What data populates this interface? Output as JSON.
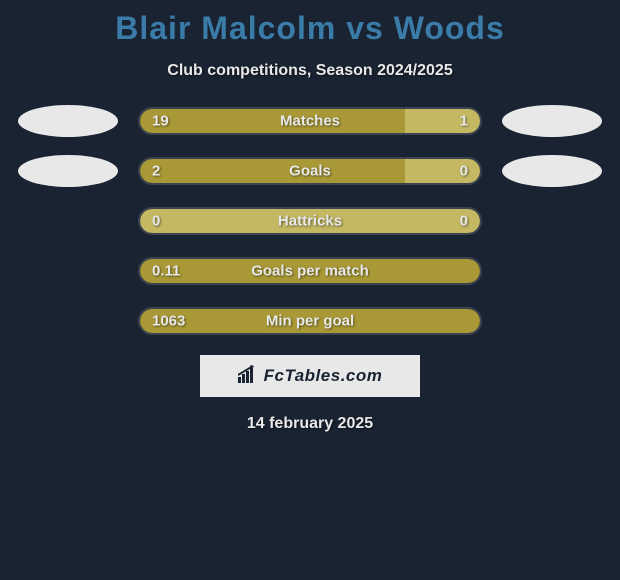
{
  "title": "Blair Malcolm vs Woods",
  "subtitle": "Club competitions, Season 2024/2025",
  "colors": {
    "background": "#1a2332",
    "title": "#3a7ba8",
    "text": "#e8e8e8",
    "bar_left": "#a99936",
    "bar_right": "#c4b863",
    "ellipse": "#e8e8e8",
    "logo_bg": "#e8e8e8"
  },
  "stats": [
    {
      "label": "Matches",
      "left_value": "19",
      "right_value": "1",
      "left_pct": 78,
      "show_ellipses": true
    },
    {
      "label": "Goals",
      "left_value": "2",
      "right_value": "0",
      "left_pct": 78,
      "show_ellipses": true
    },
    {
      "label": "Hattricks",
      "left_value": "0",
      "right_value": "0",
      "left_pct": 0,
      "show_ellipses": false
    },
    {
      "label": "Goals per match",
      "left_value": "0.11",
      "right_value": "",
      "left_pct": 100,
      "show_ellipses": false
    },
    {
      "label": "Min per goal",
      "left_value": "1063",
      "right_value": "",
      "left_pct": 100,
      "show_ellipses": false
    }
  ],
  "logo_text": "FcTables.com",
  "date": "14 february 2025"
}
